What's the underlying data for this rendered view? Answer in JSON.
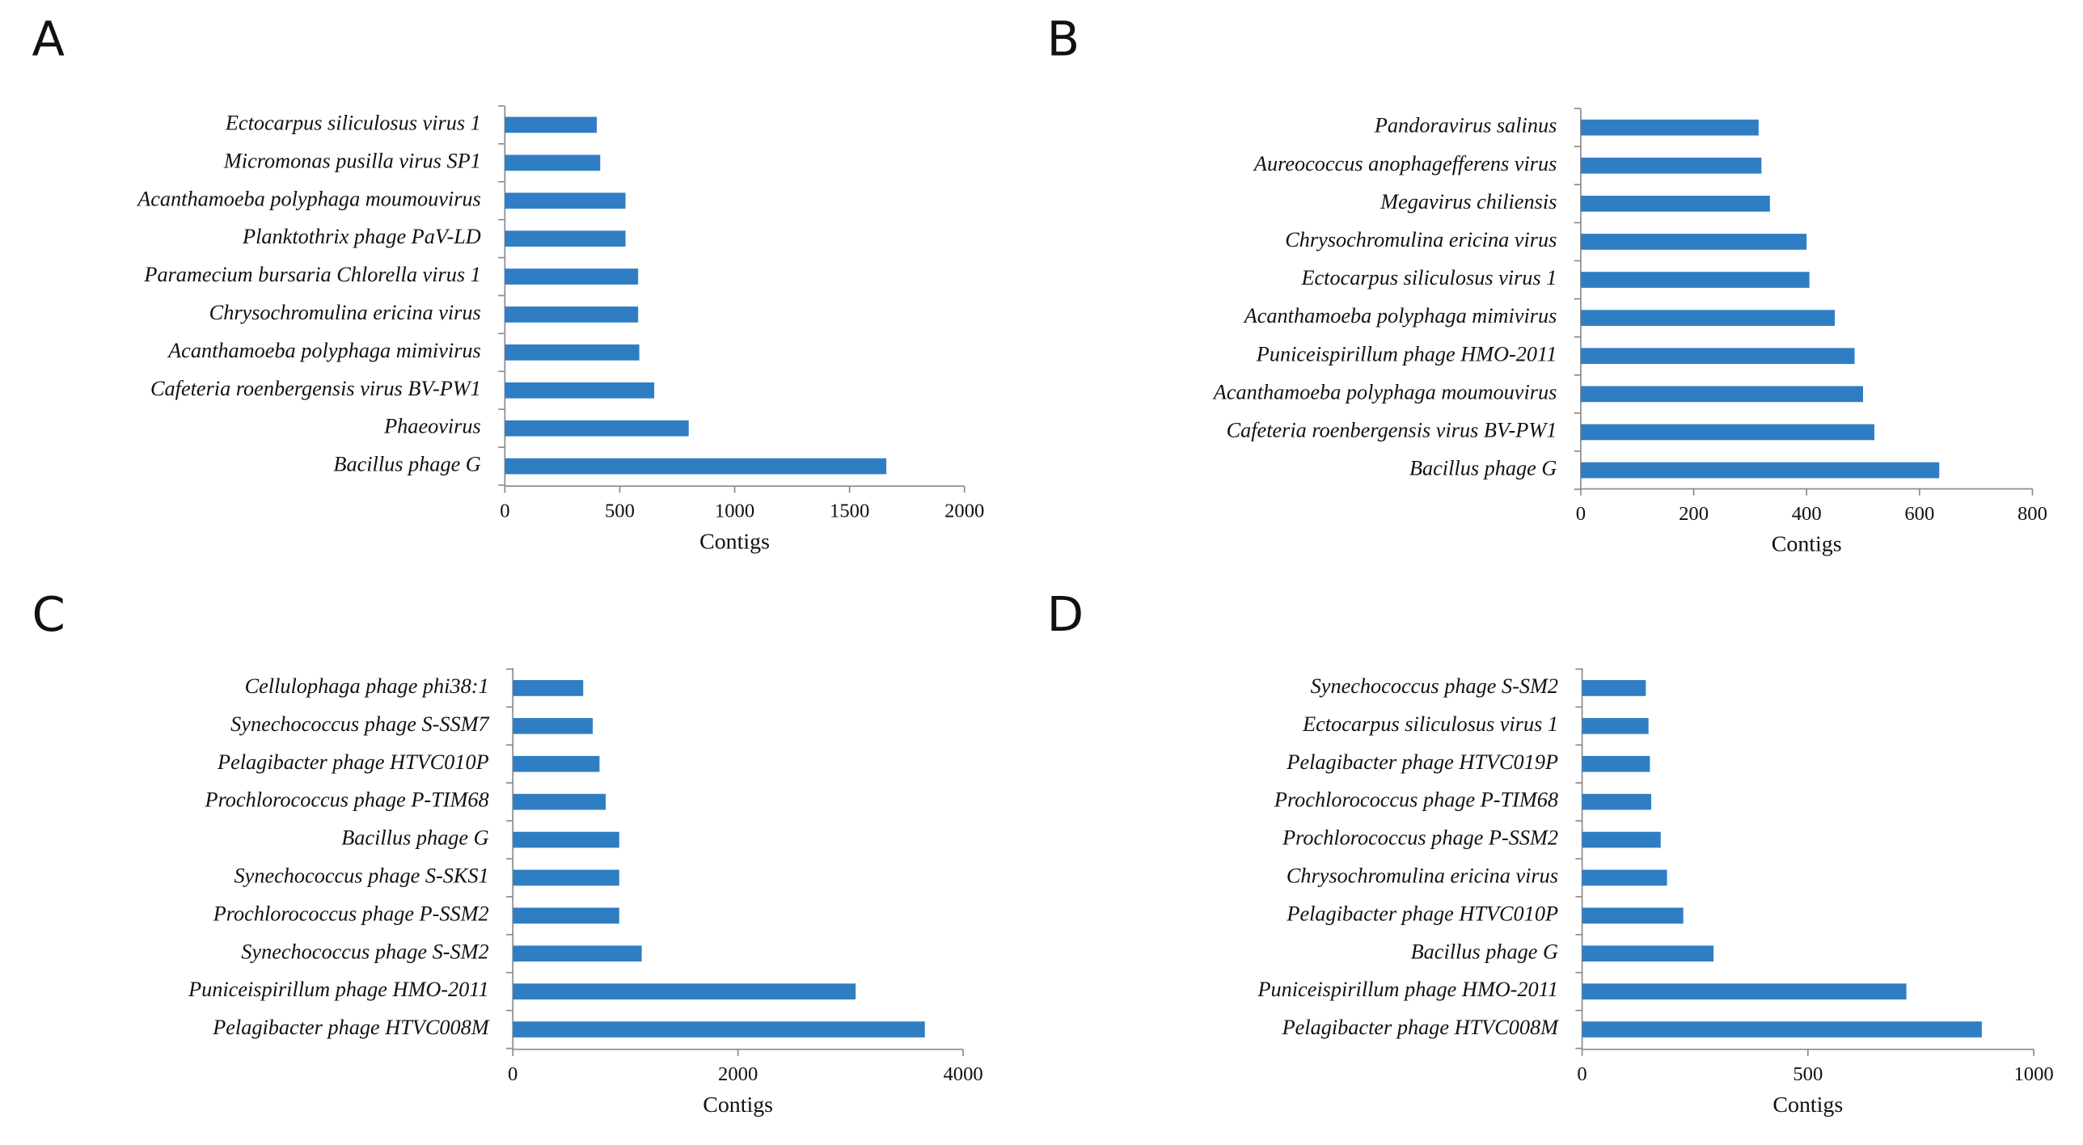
{
  "chart_data": [
    {
      "type": "hbar",
      "panel": "A",
      "xlabel": "Contigs",
      "color": "#2f7ec4",
      "categories": [
        "Ectocarpus siliculosus virus 1",
        "Micromonas pusilla virus SP1",
        "Acanthamoeba polyphaga moumouvirus",
        "Planktothrix phage PaV-LD",
        "Paramecium bursaria Chlorella virus 1",
        "Chrysochromulina ericina virus",
        "Acanthamoeba polyphaga mimivirus",
        "Cafeteria roenbergensis virus BV-PW1",
        "Phaeovirus",
        "Bacillus phage G"
      ],
      "values": [
        400,
        415,
        525,
        525,
        580,
        580,
        585,
        650,
        800,
        1660
      ],
      "xlim": [
        0,
        2000
      ],
      "xticks": [
        0,
        500,
        1000,
        1500,
        2000
      ]
    },
    {
      "type": "hbar",
      "panel": "B",
      "xlabel": "Contigs",
      "color": "#2f7ec4",
      "categories": [
        "Pandoravirus salinus",
        "Aureococcus anophagefferens virus",
        "Megavirus chiliensis",
        "Chrysochromulina ericina virus",
        "Ectocarpus siliculosus virus 1",
        "Acanthamoeba polyphaga mimivirus",
        "Puniceispirillum phage HMO-2011",
        "Acanthamoeba polyphaga moumouvirus",
        "Cafeteria roenbergensis virus BV-PW1",
        "Bacillus phage G"
      ],
      "values": [
        315,
        320,
        335,
        400,
        405,
        450,
        485,
        500,
        520,
        635
      ],
      "xlim": [
        0,
        800
      ],
      "xticks": [
        0,
        200,
        400,
        600,
        800
      ]
    },
    {
      "type": "hbar",
      "panel": "C",
      "xlabel": "Contigs",
      "color": "#2f7ec4",
      "categories": [
        "Cellulophaga phage phi38:1",
        "Synechococcus phage S-SSM7",
        "Pelagibacter phage HTVC010P",
        "Prochlorococcus phage P-TIM68",
        "Bacillus phage G",
        "Synechococcus phage S-SKS1",
        "Prochlorococcus phage P-SSM2",
        "Synechococcus phage S-SM2",
        "Puniceispirillum phage HMO-2011",
        "Pelagibacter phage HTVC008M"
      ],
      "values": [
        625,
        710,
        770,
        825,
        945,
        945,
        945,
        1145,
        3045,
        3660
      ],
      "xlim": [
        0,
        4000
      ],
      "xticks": [
        0,
        2000,
        4000
      ]
    },
    {
      "type": "hbar",
      "panel": "D",
      "xlabel": "Contigs",
      "color": "#2f7ec4",
      "categories": [
        "Synechococcus phage S-SM2",
        "Ectocarpus siliculosus virus 1",
        "Pelagibacter phage HTVC019P",
        "Prochlorococcus phage P-TIM68",
        "Prochlorococcus phage P-SSM2",
        "Chrysochromulina ericina virus",
        "Pelagibacter phage HTVC010P",
        "Bacillus phage G",
        "Puniceispirillum phage HMO-2011",
        "Pelagibacter phage HTVC008M"
      ],
      "values": [
        141,
        147,
        150,
        153,
        174,
        188,
        224,
        291,
        718,
        885
      ],
      "xlim": [
        0,
        1000
      ],
      "xticks": [
        0,
        500,
        1000
      ]
    }
  ]
}
